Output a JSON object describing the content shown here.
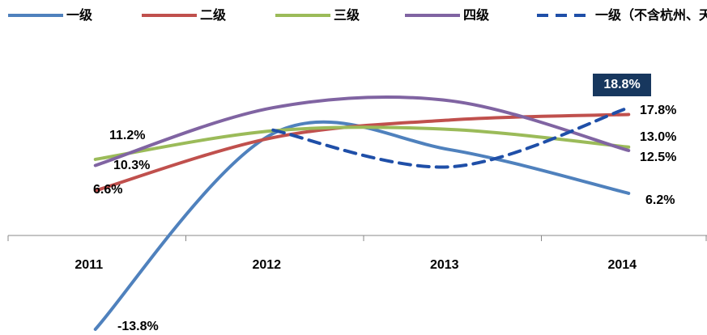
{
  "chart_data": {
    "type": "line",
    "categories": [
      "2011",
      "2012",
      "2013",
      "2014"
    ],
    "series": [
      {
        "name": "一级",
        "color": "#4f81bd",
        "dash": false,
        "values": [
          -13.8,
          15.0,
          12.6,
          6.2
        ],
        "value_labels": [
          "-13.8%",
          null,
          null,
          "6.2%"
        ]
      },
      {
        "name": "二级",
        "color": "#c0504d",
        "dash": false,
        "values": [
          6.6,
          14.4,
          17.0,
          17.8
        ],
        "value_labels": [
          "6.6%",
          null,
          null,
          "17.8%"
        ]
      },
      {
        "name": "三级",
        "color": "#9bbb59",
        "dash": false,
        "values": [
          11.2,
          15.4,
          15.6,
          13.0
        ],
        "value_labels": [
          "11.2%",
          null,
          null,
          "13.0%"
        ]
      },
      {
        "name": "四级",
        "color": "#8064a2",
        "dash": false,
        "values": [
          10.3,
          18.8,
          19.8,
          12.5
        ],
        "value_labels": [
          "10.3%",
          null,
          null,
          "12.5%"
        ]
      },
      {
        "name": "一级（不含杭州、天津）",
        "color": "#1f4fa8",
        "dash": true,
        "label_box": "#17375e",
        "values": [
          null,
          15.5,
          10.1,
          18.8
        ],
        "value_labels": [
          null,
          null,
          null,
          "18.8%"
        ]
      }
    ],
    "ylim": [
      -14.5,
      25
    ],
    "smooth": true,
    "legend": "top"
  }
}
